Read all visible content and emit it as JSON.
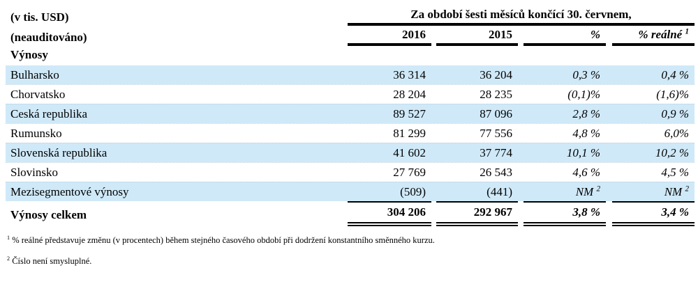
{
  "meta": {
    "unit_label": "(v tis. USD)",
    "audit_label": "(neauditováno)",
    "section_label": "Výnosy"
  },
  "table": {
    "period_header": "Za období šesti měsíců končící 30. červnem,",
    "columns": {
      "col_2016": "2016",
      "col_2015": "2015",
      "col_pct": "%",
      "col_pct_real": "% reálné ",
      "col_pct_real_sup": "1"
    },
    "rows": [
      {
        "label": "Bulharsko",
        "y2016": "36 314",
        "y2015": "36 204",
        "pct": "0,3 %",
        "pct_real": "0,4 %"
      },
      {
        "label": "Chorvatsko",
        "y2016": "28 204",
        "y2015": "28 235",
        "pct": "(0,1)%",
        "pct_real": "(1,6)%"
      },
      {
        "label": "Ceská republika",
        "y2016": "89 527",
        "y2015": "87 096",
        "pct": "2,8 %",
        "pct_real": "0,9 %"
      },
      {
        "label": "Rumunsko",
        "y2016": "81 299",
        "y2015": "77 556",
        "pct": "4,8 %",
        "pct_real": "6,0%"
      },
      {
        "label": "Slovenská republika",
        "y2016": "41 602",
        "y2015": "37 774",
        "pct": "10,1 %",
        "pct_real": "10,2 %"
      },
      {
        "label": "Slovinsko",
        "y2016": "27 769",
        "y2015": "26 543",
        "pct": "4,6 %",
        "pct_real": "4,5 %"
      },
      {
        "label": "Mezisegmentové výnosy",
        "y2016": "(509)",
        "y2015": "(441)",
        "pct": "NM ",
        "pct_sup": "2",
        "pct_real": "NM ",
        "pct_real_sup": "2"
      }
    ],
    "total": {
      "label": "Výnosy celkem",
      "y2016": "304 206",
      "y2015": "292 967",
      "pct": "3,8 %",
      "pct_real": "3,4 %"
    }
  },
  "footnotes": [
    {
      "sup": "1",
      "text": " % reálné představuje změnu (v procentech) během stejného časového období při dodržení konstantního směnného kurzu."
    },
    {
      "sup": "2",
      "text": " Číslo není smysluplné."
    }
  ],
  "colors": {
    "row_highlight": "#cfe9f8",
    "rule": "#000000"
  }
}
